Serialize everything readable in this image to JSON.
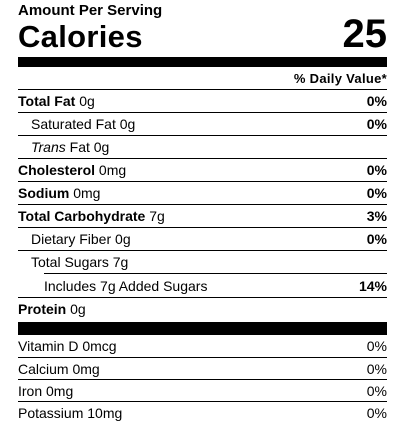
{
  "header": {
    "amount_per_serving": "Amount Per Serving",
    "calories_label": "Calories",
    "calories_value": "25",
    "daily_value_header": "% Daily Value*"
  },
  "nutrients": [
    {
      "name": "Total Fat",
      "amount": "0g",
      "dv": "0%"
    },
    {
      "name": "Saturated Fat",
      "amount": "0g",
      "dv": "0%"
    },
    {
      "name_italic": "Trans",
      "name_rest": "Fat",
      "amount": "0g",
      "dv": ""
    },
    {
      "name": "Cholesterol",
      "amount": "0mg",
      "dv": "0%"
    },
    {
      "name": "Sodium",
      "amount": "0mg",
      "dv": "0%"
    },
    {
      "name": "Total Carbohydrate",
      "amount": "7g",
      "dv": "3%"
    },
    {
      "name": "Dietary Fiber",
      "amount": "0g",
      "dv": "0%"
    },
    {
      "name": "Total Sugars",
      "amount": "7g",
      "dv": ""
    },
    {
      "name": "Includes 7g Added Sugars",
      "amount": "",
      "dv": "14%"
    },
    {
      "name": "Protein",
      "amount": "0g",
      "dv": ""
    }
  ],
  "vitamins": [
    {
      "name": "Vitamin D",
      "amount": "0mcg",
      "dv": "0%"
    },
    {
      "name": "Calcium",
      "amount": "0mg",
      "dv": "0%"
    },
    {
      "name": "Iron",
      "amount": "0mg",
      "dv": "0%"
    },
    {
      "name": "Potassium",
      "amount": "10mg",
      "dv": "0%"
    }
  ]
}
